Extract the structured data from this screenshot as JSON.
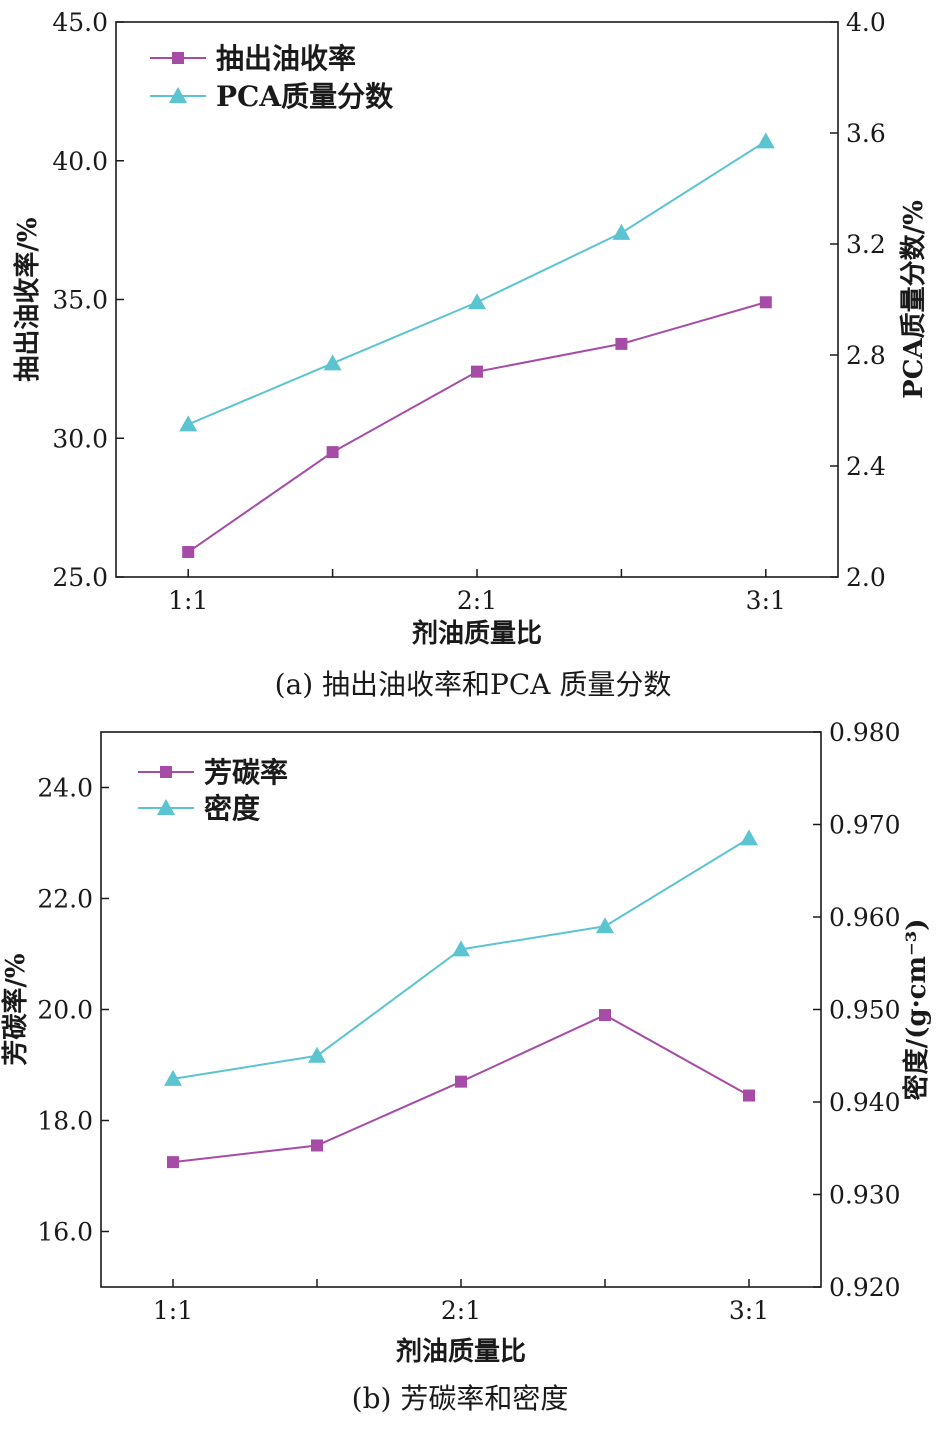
{
  "chart_data": [
    {
      "type": "line",
      "caption": "(a) 抽出油收率和PCA 质量分数",
      "xlabel": "剂油质量比",
      "x_tick_labels": [
        "1:1",
        "2:1",
        "3:1"
      ],
      "x": [
        1.0,
        1.5,
        2.0,
        2.5,
        3.0
      ],
      "xlim": [
        0.75,
        3.25
      ],
      "left_axis": {
        "label": "抽出油收率/%",
        "lim": [
          25.0,
          45.0
        ],
        "ticks": [
          "25.0",
          "30.0",
          "35.0",
          "40.0",
          "45.0"
        ]
      },
      "right_axis": {
        "label": "PCA质量分数/%",
        "lim": [
          2.0,
          4.0
        ],
        "ticks": [
          "2.0",
          "2.4",
          "2.8",
          "3.2",
          "3.6",
          "4.0"
        ]
      },
      "legend_position": "top-left",
      "series": [
        {
          "name": "抽出油收率",
          "axis": "left",
          "marker": "square",
          "color": "#a64ca6",
          "values": [
            25.9,
            29.5,
            32.4,
            33.4,
            34.9
          ]
        },
        {
          "name": "PCA质量分数",
          "axis": "right",
          "marker": "triangle",
          "color": "#5bc4d1",
          "values": [
            2.55,
            2.77,
            2.99,
            3.24,
            3.57
          ]
        }
      ]
    },
    {
      "type": "line",
      "caption": "(b) 芳碳率和密度",
      "xlabel": "剂油质量比",
      "x_tick_labels": [
        "1:1",
        "2:1",
        "3:1"
      ],
      "x": [
        1.0,
        1.5,
        2.0,
        2.5,
        3.0
      ],
      "xlim": [
        0.75,
        3.25
      ],
      "left_axis": {
        "label": "芳碳率/%",
        "lim": [
          15.0,
          25.0
        ],
        "ticks": [
          "16.0",
          "18.0",
          "20.0",
          "22.0",
          "24.0"
        ]
      },
      "right_axis": {
        "label": "密度/(g·cm⁻³)",
        "lim": [
          0.92,
          0.98
        ],
        "ticks": [
          "0.920",
          "0.930",
          "0.940",
          "0.950",
          "0.960",
          "0.970",
          "0.980"
        ]
      },
      "legend_position": "top-left",
      "series": [
        {
          "name": "芳碳率",
          "axis": "left",
          "marker": "square",
          "color": "#a64ca6",
          "values": [
            17.25,
            17.55,
            18.7,
            19.9,
            18.45
          ]
        },
        {
          "name": "密度",
          "axis": "right",
          "marker": "triangle",
          "color": "#5bc4d1",
          "values": [
            0.9425,
            0.945,
            0.9565,
            0.959,
            0.9685
          ]
        }
      ]
    }
  ]
}
